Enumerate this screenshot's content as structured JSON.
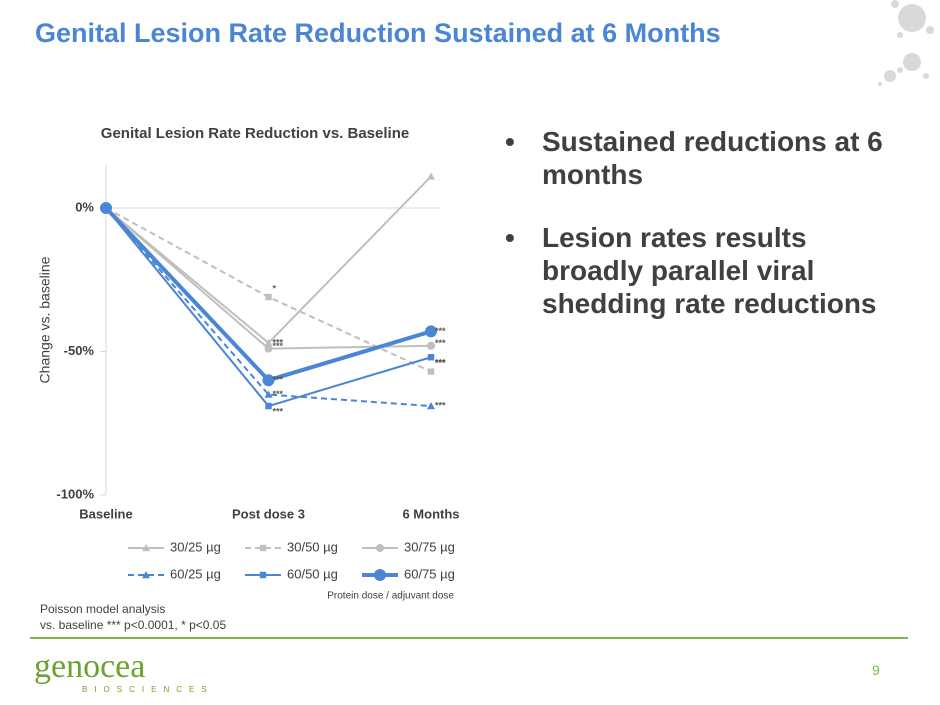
{
  "title": "Genital Lesion Rate Reduction Sustained at 6 Months",
  "bullets": [
    "Sustained reductions at 6 months",
    "Lesion rates results broadly parallel viral shedding rate reductions"
  ],
  "footnote": [
    "Poisson model analysis",
    "vs. baseline *** p<0.0001, * p<0.05"
  ],
  "page_number": "9",
  "logo": {
    "name": "genocea",
    "tagline": "BIOSCIENCES"
  },
  "chart_data": {
    "type": "line",
    "title": "Genital Lesion Rate Reduction vs. Baseline",
    "y_label": "Change vs. baseline",
    "legend_note": "Protein dose / adjuvant dose",
    "categories": [
      "Baseline",
      "Post dose 3",
      "6 Months"
    ],
    "ylim": [
      -100,
      15
    ],
    "yticks": [
      {
        "value": 0,
        "label": "0%"
      },
      {
        "value": -50,
        "label": "-50%"
      },
      {
        "value": -100,
        "label": "-100%"
      }
    ],
    "legend": "bottom",
    "series": [
      {
        "name": "30/25 µg",
        "color": "#bfbfbf",
        "marker": "triangle",
        "dashed": false,
        "width": 2,
        "values": [
          0,
          -47,
          11
        ],
        "significance": [
          null,
          "***",
          null
        ]
      },
      {
        "name": "30/50 µg",
        "color": "#bfbfbf",
        "marker": "square",
        "dashed": true,
        "width": 2,
        "values": [
          0,
          -31,
          -57
        ],
        "significance": [
          null,
          "*",
          "***"
        ]
      },
      {
        "name": "30/75 µg",
        "color": "#bfbfbf",
        "marker": "circle",
        "dashed": false,
        "width": 2,
        "values": [
          0,
          -49,
          -48
        ],
        "significance": [
          null,
          "***",
          "***"
        ]
      },
      {
        "name": "60/25 µg",
        "color": "#4a86d4",
        "marker": "triangle",
        "dashed": true,
        "width": 2,
        "values": [
          0,
          -65,
          -69
        ],
        "significance": [
          null,
          "***",
          "***"
        ]
      },
      {
        "name": "60/50 µg",
        "color": "#4a86d4",
        "marker": "square",
        "dashed": false,
        "width": 2,
        "values": [
          0,
          -69,
          -52
        ],
        "significance": [
          null,
          "***",
          "***"
        ]
      },
      {
        "name": "60/75 µg",
        "color": "#4a86d4",
        "marker": "circle",
        "dashed": false,
        "width": 4,
        "values": [
          0,
          -60,
          -43
        ],
        "significance": [
          null,
          "***",
          "***"
        ]
      }
    ]
  }
}
